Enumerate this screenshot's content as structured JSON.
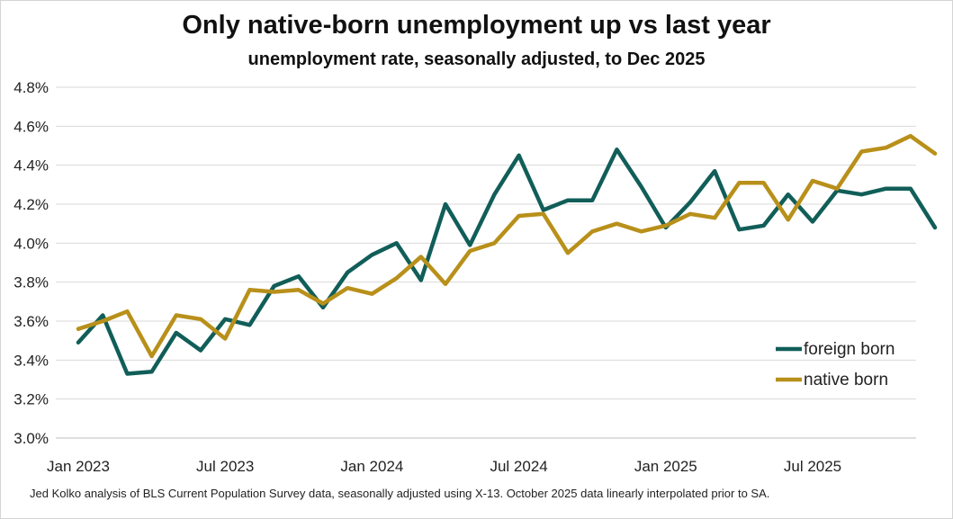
{
  "chart_data": {
    "type": "line",
    "title": "Only native-born unemployment up vs last year",
    "subtitle": "unemployment rate, seasonally adjusted, to Dec 2025",
    "xlabel": "",
    "ylabel": "",
    "ylim": [
      3.0,
      4.8
    ],
    "y_ticks": [
      "3.0%",
      "3.2%",
      "3.4%",
      "3.6%",
      "3.8%",
      "4.0%",
      "4.2%",
      "4.4%",
      "4.6%",
      "4.8%"
    ],
    "x_ticks": [
      {
        "label": "Jan 2023",
        "index": 0
      },
      {
        "label": "Jul 2023",
        "index": 6
      },
      {
        "label": "Jan 2024",
        "index": 12
      },
      {
        "label": "Jul 2024",
        "index": 18
      },
      {
        "label": "Jan 2025",
        "index": 24
      },
      {
        "label": "Jul 2025",
        "index": 30
      }
    ],
    "grid": true,
    "legend_position": "bottom-right",
    "series": [
      {
        "name": "foreign born",
        "color": "#115e59",
        "values": [
          3.49,
          3.63,
          3.33,
          3.34,
          3.54,
          3.45,
          3.61,
          3.58,
          3.78,
          3.83,
          3.67,
          3.85,
          3.94,
          4.0,
          3.81,
          4.2,
          3.99,
          4.25,
          4.45,
          4.17,
          4.22,
          4.22,
          4.48,
          4.29,
          4.08,
          4.21,
          4.37,
          4.07,
          4.09,
          4.25,
          4.11,
          4.27,
          4.25,
          4.28,
          4.28,
          4.08
        ]
      },
      {
        "name": "native born",
        "color": "#b8901a",
        "values": [
          3.56,
          3.6,
          3.65,
          3.42,
          3.63,
          3.61,
          3.51,
          3.76,
          3.75,
          3.76,
          3.69,
          3.77,
          3.74,
          3.82,
          3.93,
          3.79,
          3.96,
          4.0,
          4.14,
          4.15,
          3.95,
          4.06,
          4.1,
          4.06,
          4.09,
          4.15,
          4.13,
          4.31,
          4.31,
          4.12,
          4.32,
          4.28,
          4.47,
          4.49,
          4.55,
          4.46
        ]
      }
    ]
  },
  "note": "Jed Kolko analysis of BLS Current Population Survey data, seasonally adjusted using X-13. October 2025 data linearly interpolated prior to SA."
}
